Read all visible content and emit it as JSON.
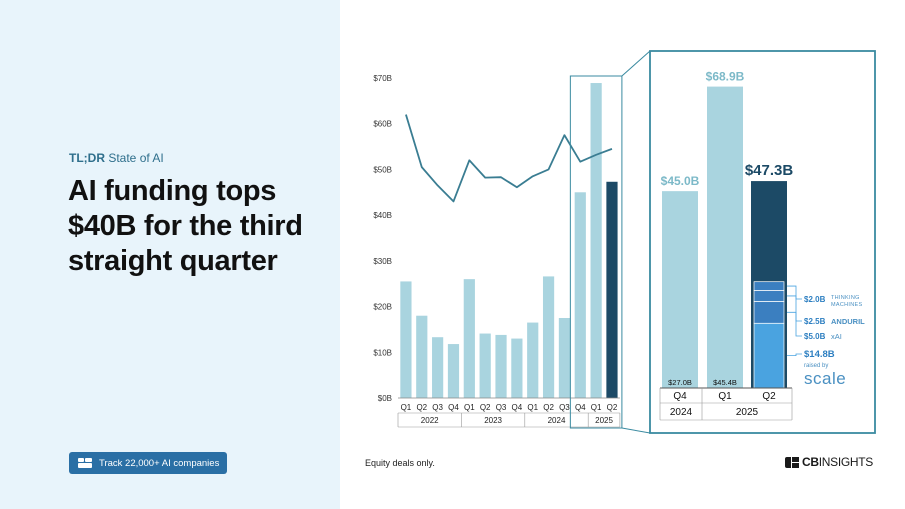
{
  "kicker": {
    "bold": "TL;DR",
    "rest": " State of AI"
  },
  "headline": "AI funding tops $40B for the third straight quarter",
  "cta_label": "Track 22,000+ AI companies",
  "footnote": "Equity deals only.",
  "brand": {
    "bold": "CB",
    "rest": "INSIGHTS"
  },
  "colors": {
    "light_bar": "#a9d4df",
    "dark_bar": "#1c4a66",
    "line": "#3a7d92",
    "highlight_box": "#3a8aa0",
    "scale_segment": "#4aa3e0"
  },
  "chart_data": [
    {
      "type": "bar",
      "categories": [
        "Q1",
        "Q2",
        "Q3",
        "Q4",
        "Q1",
        "Q2",
        "Q3",
        "Q4",
        "Q1",
        "Q2",
        "Q3",
        "Q4",
        "Q1",
        "Q2"
      ],
      "years": [
        {
          "label": "2022",
          "span": [
            0,
            3
          ]
        },
        {
          "label": "2023",
          "span": [
            4,
            7
          ]
        },
        {
          "label": "2024",
          "span": [
            8,
            11
          ]
        },
        {
          "label": "2025",
          "span": [
            12,
            13
          ]
        }
      ],
      "values": [
        25.5,
        18.0,
        13.3,
        11.8,
        26.0,
        14.1,
        13.8,
        13.0,
        16.5,
        26.6,
        17.5,
        45.0,
        68.9,
        47.3
      ],
      "line_values": [
        62,
        50.5,
        46.5,
        43,
        52,
        48.2,
        48.3,
        46.1,
        48.5,
        50,
        57.5,
        51.7,
        53.2,
        54.5
      ],
      "highlight_start": 11,
      "yticks": [
        "$0B",
        "$10B",
        "$20B",
        "$30B",
        "$40B",
        "$50B",
        "$60B",
        "$70B"
      ],
      "ylim": [
        0,
        70
      ]
    },
    {
      "type": "bar",
      "categories": [
        "Q4",
        "Q1",
        "Q2"
      ],
      "years": [
        {
          "label": "2024",
          "span": [
            0,
            0
          ]
        },
        {
          "label": "2025",
          "span": [
            1,
            2
          ]
        }
      ],
      "values": [
        45.0,
        68.9,
        47.3
      ],
      "value_labels": [
        "$45.0B",
        "$68.9B",
        "$47.3B"
      ],
      "base_values": [
        27.0,
        45.4,
        0
      ],
      "base_labels": [
        "$27.0B",
        "$45.4B",
        ""
      ],
      "ylim": [
        0,
        70
      ],
      "annotations": [
        {
          "amount": 2.0,
          "label": "$2.0B",
          "company_line1": "THINKING",
          "company_line2": "MACHINES"
        },
        {
          "amount": 2.5,
          "label": "$2.5B",
          "company_line1": "ANDURIL",
          "company_line2": ""
        },
        {
          "amount": 5.0,
          "label": "$5.0B",
          "company_line1": "xAI",
          "company_line2": ""
        },
        {
          "amount": 14.8,
          "label": "$14.8B",
          "company_line1": "raised by",
          "company_line2": "scale"
        }
      ]
    }
  ]
}
